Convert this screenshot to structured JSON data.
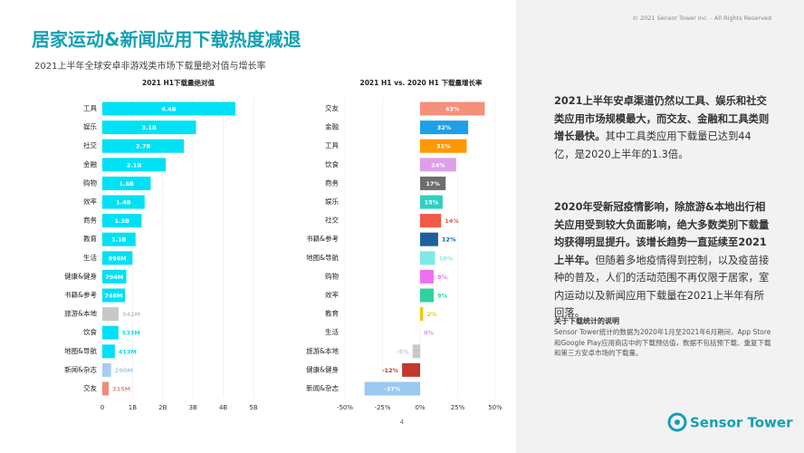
{
  "header": {
    "title": "居家运动&新闻应用下载热度减退",
    "subtitle": "2021上半年全球安卓非游戏类市场下载量绝对值与增长率"
  },
  "chart_data": [
    {
      "type": "bar",
      "orientation": "horizontal",
      "title": "2021 H1下载量绝对值",
      "categories": [
        "工具",
        "娱乐",
        "社交",
        "金融",
        "购物",
        "效率",
        "商务",
        "教育",
        "生活",
        "健康&健身",
        "书籍&参考",
        "旅游&本地",
        "饮食",
        "地图&导航",
        "新闻&杂志",
        "交友"
      ],
      "values": [
        4.4,
        3.1,
        2.7,
        2.1,
        1.6,
        1.4,
        1.3,
        1.1,
        0.996,
        0.794,
        0.748,
        0.542,
        0.533,
        0.413,
        0.29,
        0.215
      ],
      "value_labels": [
        "4.4B",
        "3.1B",
        "2.7B",
        "2.1B",
        "1.6B",
        "1.4B",
        "1.3B",
        "1.1B",
        "996M",
        "794M",
        "748M",
        "542M",
        "533M",
        "413M",
        "290M",
        "215M"
      ],
      "colors": [
        "#00e1f5",
        "#00e1f5",
        "#00e1f5",
        "#00e1f5",
        "#00e1f5",
        "#00e1f5",
        "#00e1f5",
        "#00e1f5",
        "#00e1f5",
        "#00e1f5",
        "#00e1f5",
        "#c8c8c8",
        "#00e1f5",
        "#00e1f5",
        "#a8cdf0",
        "#f08c78"
      ],
      "xlim": [
        0,
        5
      ],
      "xticks": [
        0,
        {
          "value": 1,
          "label": "1B"
        },
        {
          "value": 2,
          "label": "2B"
        },
        {
          "value": 3,
          "label": "3B"
        },
        {
          "value": 4,
          "label": "4B"
        },
        {
          "value": 5,
          "label": "5B"
        }
      ],
      "grid": true
    },
    {
      "type": "bar",
      "orientation": "horizontal",
      "title": "2021 H1 vs. 2020 H1 下载量增长率",
      "categories": [
        "交友",
        "金融",
        "工具",
        "饮食",
        "商务",
        "娱乐",
        "社交",
        "书籍&参考",
        "地图&导航",
        "购物",
        "效率",
        "教育",
        "生活",
        "旅游&本地",
        "健康&健身",
        "新闻&杂志"
      ],
      "values": [
        43,
        32,
        31,
        24,
        17,
        15,
        14,
        12,
        10,
        9,
        9,
        2,
        0,
        -5,
        -12,
        -37
      ],
      "value_labels": [
        "43%",
        "32%",
        "31%",
        "24%",
        "17%",
        "15%",
        "14%",
        "12%",
        "10%",
        "9%",
        "9%",
        "2%",
        "0%",
        "-5%",
        "-12%",
        "-37%"
      ],
      "colors": [
        "#f4907a",
        "#1ea0e6",
        "#ff9800",
        "#dca0e8",
        "#6e6e6e",
        "#2ed0c0",
        "#f05a46",
        "#1e5fa0",
        "#80e8e8",
        "#f06ef0",
        "#2ed2a0",
        "#f0c800",
        "#c8a0f0",
        "#c8c8c8",
        "#c0392b",
        "#9ac8f0"
      ],
      "xlim": [
        -50,
        50
      ],
      "xticks": [
        {
          "value": -50,
          "label": "-50%"
        },
        {
          "value": -25,
          "label": "-25%"
        },
        {
          "value": 0,
          "label": "0%"
        },
        {
          "value": 25,
          "label": "25%"
        },
        {
          "value": 50,
          "label": "50%"
        }
      ],
      "grid": true
    }
  ],
  "panel": {
    "paragraphs": [
      {
        "bold": "2021上半年安卓渠道仍然以工具、娱乐和社交类应用市场规模最大，而交友、金融和工具类则增长最快。",
        "text": "其中工具类应用下载量已达到44亿，是2020上半年的1.3倍。"
      },
      {
        "bold": "2020年受新冠疫情影响，除旅游&本地出行相关应用受到较大负面影响，绝大多数类别下载量均获得明显提升。该增长趋势一直延续至2021上半年。",
        "text": "但随着多地疫情得到控制，以及疫苗接种的普及，人们的活动范围不再仅限于居家，室内运动以及新闻应用下载量在2021上半年有所回落。"
      }
    ],
    "note_title": "关于下载统计的说明",
    "note_text": "Sensor Tower统计的数据为2020年1月至2021年6月期间，App Store和Google Play应用商店中的下载预估值，数据不包括预下载、重复下载和第三方安卓市场的下载量。"
  },
  "footer": {
    "copyright": "© 2021 Sensor Tower Inc. - All Rights Reserved",
    "page": "4",
    "logo": "Sensor Tower"
  }
}
